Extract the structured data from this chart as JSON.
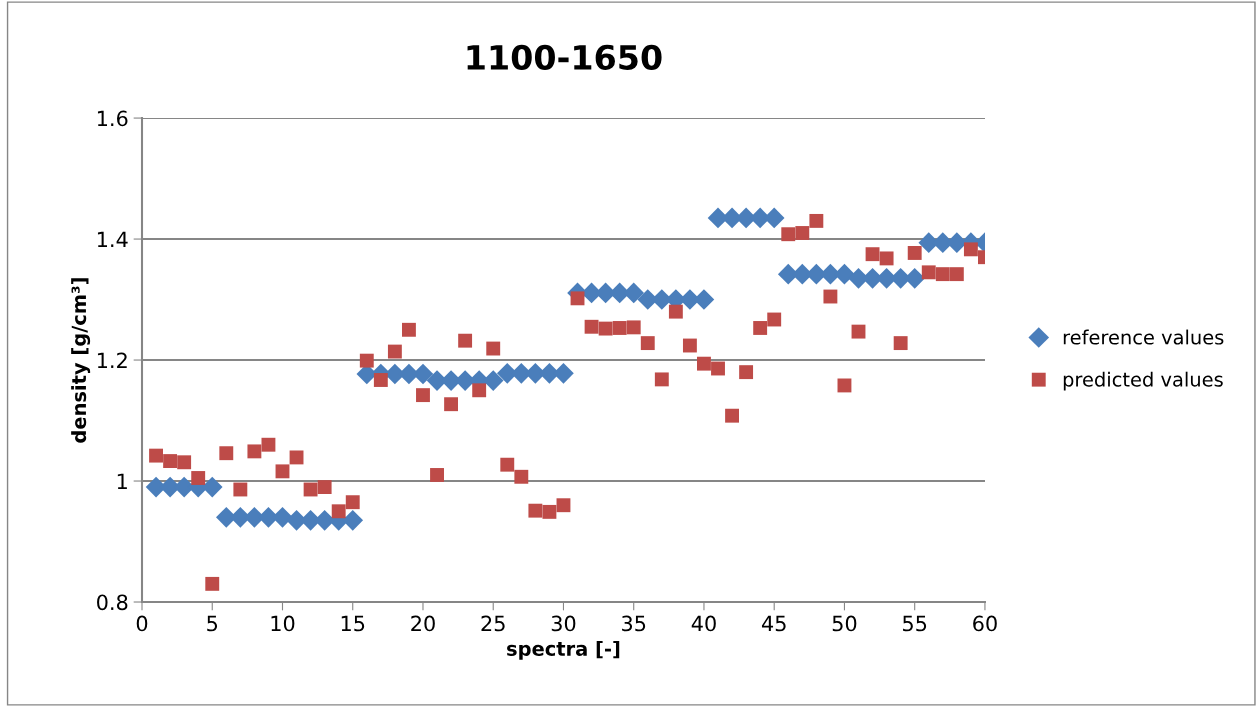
{
  "chart_data": {
    "type": "scatter",
    "title": "1100-1650",
    "xlabel": "spectra [-]",
    "ylabel": "density [g/cm³]",
    "x": [
      1,
      2,
      3,
      4,
      5,
      6,
      7,
      8,
      9,
      10,
      11,
      12,
      13,
      14,
      15,
      16,
      17,
      18,
      19,
      20,
      21,
      22,
      23,
      24,
      25,
      26,
      27,
      28,
      29,
      30,
      31,
      32,
      33,
      34,
      35,
      36,
      37,
      38,
      39,
      40,
      41,
      42,
      43,
      44,
      45,
      46,
      47,
      48,
      49,
      50,
      51,
      52,
      53,
      54,
      55,
      56,
      57,
      58,
      59,
      60
    ],
    "series": [
      {
        "name": "reference values",
        "color": "#4a7ebb",
        "marker": "diamond",
        "values": [
          0.99,
          0.99,
          0.99,
          0.99,
          0.99,
          0.94,
          0.94,
          0.94,
          0.94,
          0.94,
          0.935,
          0.935,
          0.935,
          0.935,
          0.935,
          1.177,
          1.177,
          1.177,
          1.177,
          1.177,
          1.166,
          1.166,
          1.166,
          1.166,
          1.166,
          1.178,
          1.178,
          1.178,
          1.178,
          1.178,
          1.311,
          1.311,
          1.311,
          1.311,
          1.311,
          1.3,
          1.3,
          1.3,
          1.3,
          1.3,
          1.435,
          1.435,
          1.435,
          1.435,
          1.435,
          1.342,
          1.342,
          1.342,
          1.342,
          1.342,
          1.335,
          1.335,
          1.335,
          1.335,
          1.335,
          1.394,
          1.394,
          1.394,
          1.394,
          1.394
        ]
      },
      {
        "name": "predicted values",
        "color": "#be4b48",
        "marker": "square",
        "values": [
          1.042,
          1.033,
          1.031,
          1.005,
          0.83,
          1.046,
          0.986,
          1.049,
          1.06,
          1.016,
          1.039,
          0.986,
          0.99,
          0.95,
          0.965,
          1.199,
          1.167,
          1.214,
          1.25,
          1.142,
          1.01,
          1.127,
          1.232,
          1.15,
          1.219,
          1.027,
          1.007,
          0.951,
          0.949,
          0.96,
          1.302,
          1.255,
          1.252,
          1.253,
          1.254,
          1.228,
          1.168,
          1.28,
          1.224,
          1.194,
          1.186,
          1.108,
          1.18,
          1.253,
          1.267,
          1.408,
          1.41,
          1.43,
          1.305,
          1.158,
          1.247,
          1.375,
          1.368,
          1.228,
          1.377,
          1.345,
          1.342,
          1.342,
          1.383,
          1.37
        ]
      }
    ],
    "xlim": [
      0,
      60
    ],
    "xticks": [
      0,
      5,
      10,
      15,
      20,
      25,
      30,
      35,
      40,
      45,
      50,
      55,
      60
    ],
    "ylim": [
      0.8,
      1.6
    ],
    "yticks": [
      0.8,
      1,
      1.2,
      1.4,
      1.6
    ],
    "grid": "y",
    "legend": "right"
  }
}
